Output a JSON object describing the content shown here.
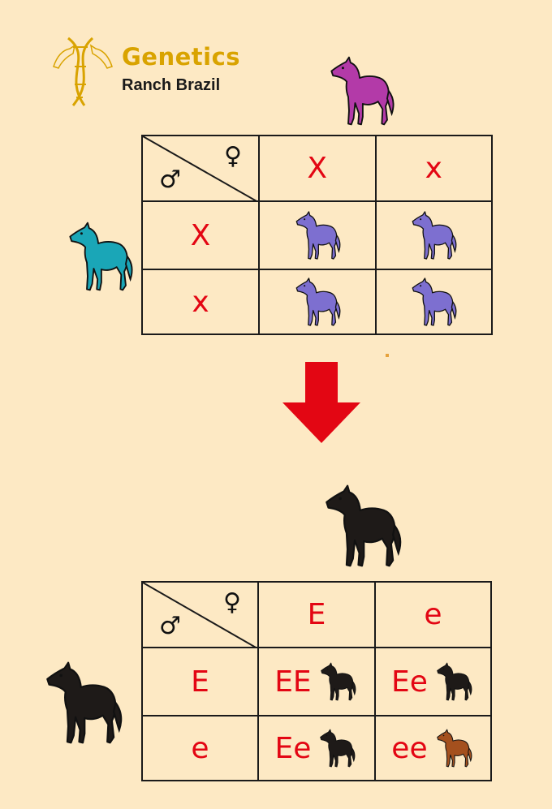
{
  "logo": {
    "line1": "Genetics",
    "line2": "Ranch Brazil",
    "icon": "dna-horse-logo-icon"
  },
  "colors": {
    "background": "#fde9c4",
    "allele_red": "#e30613",
    "logo_gold": "#d9a300",
    "mare_magenta": "#b33aa8",
    "stallion_teal": "#1aa6b7",
    "horse_black": "#1e1a18",
    "horse_chestnut": "#a4501e"
  },
  "top_square": {
    "female_symbol": "♀",
    "male_symbol": "♂",
    "female_alleles": [
      "X",
      "x"
    ],
    "male_alleles": [
      "X",
      "x"
    ]
  },
  "bottom_square": {
    "female_symbol": "♀",
    "male_symbol": "♂",
    "female_alleles": [
      "E",
      "e"
    ],
    "male_alleles": [
      "E",
      "e"
    ],
    "cells": [
      [
        "EE",
        "Ee"
      ],
      [
        "Ee",
        "ee"
      ]
    ]
  },
  "arrow_icon": "down-arrow-icon"
}
